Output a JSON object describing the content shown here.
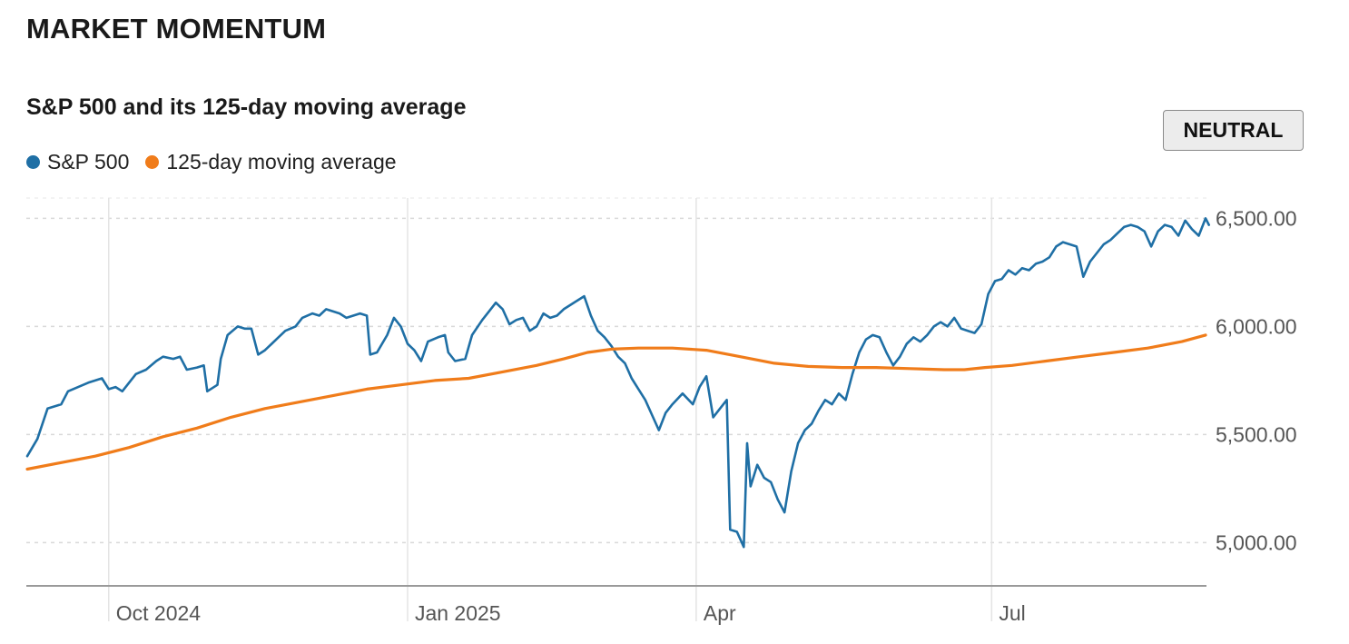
{
  "page_title": "MARKET MOMENTUM",
  "status_badge": "NEUTRAL",
  "colors": {
    "sp500": "#1f6fa5",
    "ma125": "#f07c1a",
    "grid": "#d9d9d9",
    "axis": "#9a9a9a"
  },
  "chart_data": {
    "type": "line",
    "title": "S&P 500 and its 125-day moving average",
    "xlabel": "",
    "ylabel": "",
    "x_range": [
      0,
      347
    ],
    "ylim": [
      4800,
      6590
    ],
    "y_ticks": [
      {
        "value": 5000,
        "label": "5,000.00"
      },
      {
        "value": 5500,
        "label": "5,500.00"
      },
      {
        "value": 6000,
        "label": "6,000.00"
      },
      {
        "value": 6500,
        "label": "6,500.00"
      }
    ],
    "x_ticks": [
      {
        "x": 24,
        "label": "Oct 2024"
      },
      {
        "x": 112,
        "label": "Jan 2025"
      },
      {
        "x": 197,
        "label": "Apr"
      },
      {
        "x": 284,
        "label": "Jul"
      }
    ],
    "legend": [
      "S&P 500",
      "125-day moving average"
    ],
    "legend_position": "top-left",
    "series": [
      {
        "name": "S&P 500",
        "points": [
          [
            0,
            5400
          ],
          [
            3,
            5480
          ],
          [
            6,
            5620
          ],
          [
            10,
            5640
          ],
          [
            12,
            5700
          ],
          [
            15,
            5720
          ],
          [
            18,
            5740
          ],
          [
            22,
            5760
          ],
          [
            24,
            5710
          ],
          [
            26,
            5720
          ],
          [
            28,
            5700
          ],
          [
            32,
            5780
          ],
          [
            35,
            5800
          ],
          [
            38,
            5840
          ],
          [
            40,
            5860
          ],
          [
            43,
            5850
          ],
          [
            45,
            5860
          ],
          [
            47,
            5800
          ],
          [
            50,
            5810
          ],
          [
            52,
            5820
          ],
          [
            53,
            5700
          ],
          [
            56,
            5730
          ],
          [
            57,
            5850
          ],
          [
            59,
            5960
          ],
          [
            62,
            6000
          ],
          [
            64,
            5990
          ],
          [
            66,
            5990
          ],
          [
            68,
            5870
          ],
          [
            70,
            5890
          ],
          [
            72,
            5920
          ],
          [
            74,
            5950
          ],
          [
            76,
            5980
          ],
          [
            79,
            6000
          ],
          [
            81,
            6040
          ],
          [
            84,
            6060
          ],
          [
            86,
            6050
          ],
          [
            88,
            6080
          ],
          [
            90,
            6070
          ],
          [
            92,
            6060
          ],
          [
            94,
            6040
          ],
          [
            96,
            6050
          ],
          [
            98,
            6060
          ],
          [
            100,
            6050
          ],
          [
            101,
            5870
          ],
          [
            103,
            5880
          ],
          [
            106,
            5960
          ],
          [
            108,
            6040
          ],
          [
            110,
            6000
          ],
          [
            112,
            5920
          ],
          [
            114,
            5890
          ],
          [
            116,
            5840
          ],
          [
            118,
            5930
          ],
          [
            121,
            5950
          ],
          [
            123,
            5960
          ],
          [
            124,
            5880
          ],
          [
            126,
            5840
          ],
          [
            129,
            5850
          ],
          [
            131,
            5960
          ],
          [
            134,
            6030
          ],
          [
            136,
            6070
          ],
          [
            138,
            6110
          ],
          [
            140,
            6080
          ],
          [
            142,
            6010
          ],
          [
            144,
            6030
          ],
          [
            146,
            6040
          ],
          [
            148,
            5980
          ],
          [
            150,
            6000
          ],
          [
            152,
            6060
          ],
          [
            154,
            6040
          ],
          [
            156,
            6050
          ],
          [
            158,
            6080
          ],
          [
            160,
            6100
          ],
          [
            162,
            6120
          ],
          [
            164,
            6140
          ],
          [
            166,
            6050
          ],
          [
            168,
            5980
          ],
          [
            170,
            5950
          ],
          [
            172,
            5910
          ],
          [
            174,
            5860
          ],
          [
            176,
            5830
          ],
          [
            178,
            5760
          ],
          [
            180,
            5710
          ],
          [
            182,
            5660
          ],
          [
            184,
            5590
          ],
          [
            186,
            5520
          ],
          [
            188,
            5600
          ],
          [
            190,
            5640
          ],
          [
            193,
            5690
          ],
          [
            196,
            5640
          ],
          [
            198,
            5720
          ],
          [
            200,
            5770
          ],
          [
            202,
            5580
          ],
          [
            204,
            5620
          ],
          [
            206,
            5660
          ],
          [
            207,
            5060
          ],
          [
            209,
            5050
          ],
          [
            211,
            4980
          ],
          [
            212,
            5460
          ],
          [
            213,
            5260
          ],
          [
            215,
            5360
          ],
          [
            217,
            5300
          ],
          [
            219,
            5280
          ],
          [
            221,
            5200
          ],
          [
            223,
            5140
          ],
          [
            225,
            5330
          ],
          [
            227,
            5460
          ],
          [
            229,
            5520
          ],
          [
            231,
            5550
          ],
          [
            233,
            5610
          ],
          [
            235,
            5660
          ],
          [
            237,
            5640
          ],
          [
            239,
            5690
          ],
          [
            241,
            5660
          ],
          [
            243,
            5780
          ],
          [
            245,
            5880
          ],
          [
            247,
            5940
          ],
          [
            249,
            5960
          ],
          [
            251,
            5950
          ],
          [
            253,
            5880
          ],
          [
            255,
            5820
          ],
          [
            257,
            5860
          ],
          [
            259,
            5920
          ],
          [
            261,
            5950
          ],
          [
            263,
            5930
          ],
          [
            265,
            5960
          ],
          [
            267,
            6000
          ],
          [
            269,
            6020
          ],
          [
            271,
            6000
          ],
          [
            273,
            6040
          ],
          [
            275,
            5990
          ],
          [
            277,
            5980
          ],
          [
            279,
            5970
          ],
          [
            281,
            6010
          ],
          [
            283,
            6150
          ],
          [
            285,
            6210
          ],
          [
            287,
            6220
          ],
          [
            289,
            6260
          ],
          [
            291,
            6240
          ],
          [
            293,
            6270
          ],
          [
            295,
            6260
          ],
          [
            297,
            6290
          ],
          [
            299,
            6300
          ],
          [
            301,
            6320
          ],
          [
            303,
            6370
          ],
          [
            305,
            6390
          ],
          [
            307,
            6380
          ],
          [
            309,
            6370
          ],
          [
            311,
            6230
          ],
          [
            313,
            6300
          ],
          [
            315,
            6340
          ],
          [
            317,
            6380
          ],
          [
            319,
            6400
          ],
          [
            321,
            6430
          ],
          [
            323,
            6460
          ],
          [
            325,
            6470
          ],
          [
            327,
            6460
          ],
          [
            329,
            6440
          ],
          [
            331,
            6370
          ],
          [
            333,
            6440
          ],
          [
            335,
            6470
          ],
          [
            337,
            6460
          ],
          [
            339,
            6420
          ],
          [
            341,
            6490
          ],
          [
            343,
            6450
          ],
          [
            345,
            6420
          ],
          [
            347,
            6500
          ],
          [
            348,
            6470
          ]
        ]
      },
      {
        "name": "125-day moving average",
        "points": [
          [
            0,
            5340
          ],
          [
            10,
            5370
          ],
          [
            20,
            5400
          ],
          [
            30,
            5440
          ],
          [
            40,
            5490
          ],
          [
            50,
            5530
          ],
          [
            60,
            5580
          ],
          [
            70,
            5620
          ],
          [
            80,
            5650
          ],
          [
            90,
            5680
          ],
          [
            100,
            5710
          ],
          [
            110,
            5730
          ],
          [
            120,
            5750
          ],
          [
            130,
            5760
          ],
          [
            140,
            5790
          ],
          [
            150,
            5820
          ],
          [
            158,
            5850
          ],
          [
            165,
            5880
          ],
          [
            172,
            5895
          ],
          [
            180,
            5900
          ],
          [
            190,
            5900
          ],
          [
            200,
            5890
          ],
          [
            210,
            5860
          ],
          [
            220,
            5830
          ],
          [
            230,
            5815
          ],
          [
            240,
            5810
          ],
          [
            250,
            5810
          ],
          [
            260,
            5805
          ],
          [
            270,
            5800
          ],
          [
            276,
            5800
          ],
          [
            282,
            5810
          ],
          [
            290,
            5820
          ],
          [
            300,
            5840
          ],
          [
            310,
            5860
          ],
          [
            320,
            5880
          ],
          [
            330,
            5900
          ],
          [
            340,
            5930
          ],
          [
            347,
            5960
          ]
        ]
      }
    ]
  }
}
